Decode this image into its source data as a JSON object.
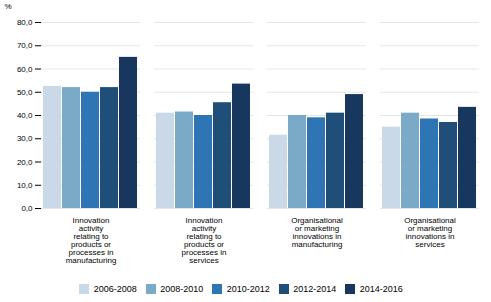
{
  "chart_data": {
    "type": "bar",
    "categories": [
      "Innovation\nactivity\nrelating to\nproducts or\nprocesses in\nmanufacturing",
      "Innovation\nactivity\nrelating to\nproducts or\nprocesses in\nservices",
      "Organisational\nor marketing\ninnovations in\nmanufacturing",
      "Organisational\nor marketing\ninnovations in\nservices"
    ],
    "series": [
      {
        "name": "2006-2008",
        "values": [
          52.5,
          41.0,
          31.5,
          35.0
        ],
        "color": "#c9d9e8"
      },
      {
        "name": "2008-2010",
        "values": [
          52.0,
          41.5,
          40.0,
          41.0
        ],
        "color": "#7aaac8"
      },
      {
        "name": "2010-2012",
        "values": [
          50.0,
          40.0,
          39.0,
          38.5
        ],
        "color": "#2e75b6"
      },
      {
        "name": "2012-2014",
        "values": [
          52.0,
          45.5,
          41.0,
          37.0
        ],
        "color": "#1f4e79"
      },
      {
        "name": "2014-2016",
        "values": [
          65.0,
          53.5,
          49.0,
          43.5
        ],
        "color": "#17375e"
      }
    ],
    "ylabel": "%",
    "ylim": [
      0,
      80
    ],
    "yticks": [
      {
        "value": 0,
        "label": "0,0"
      },
      {
        "value": 10,
        "label": "10,0"
      },
      {
        "value": 20,
        "label": "20,0"
      },
      {
        "value": 30,
        "label": "30,0"
      },
      {
        "value": 40,
        "label": "40,0"
      },
      {
        "value": 50,
        "label": "50,0"
      },
      {
        "value": 60,
        "label": "60,0"
      },
      {
        "value": 70,
        "label": "70,0"
      },
      {
        "value": 80,
        "label": "80,0"
      }
    ],
    "grid": true,
    "legend": "bottom"
  }
}
